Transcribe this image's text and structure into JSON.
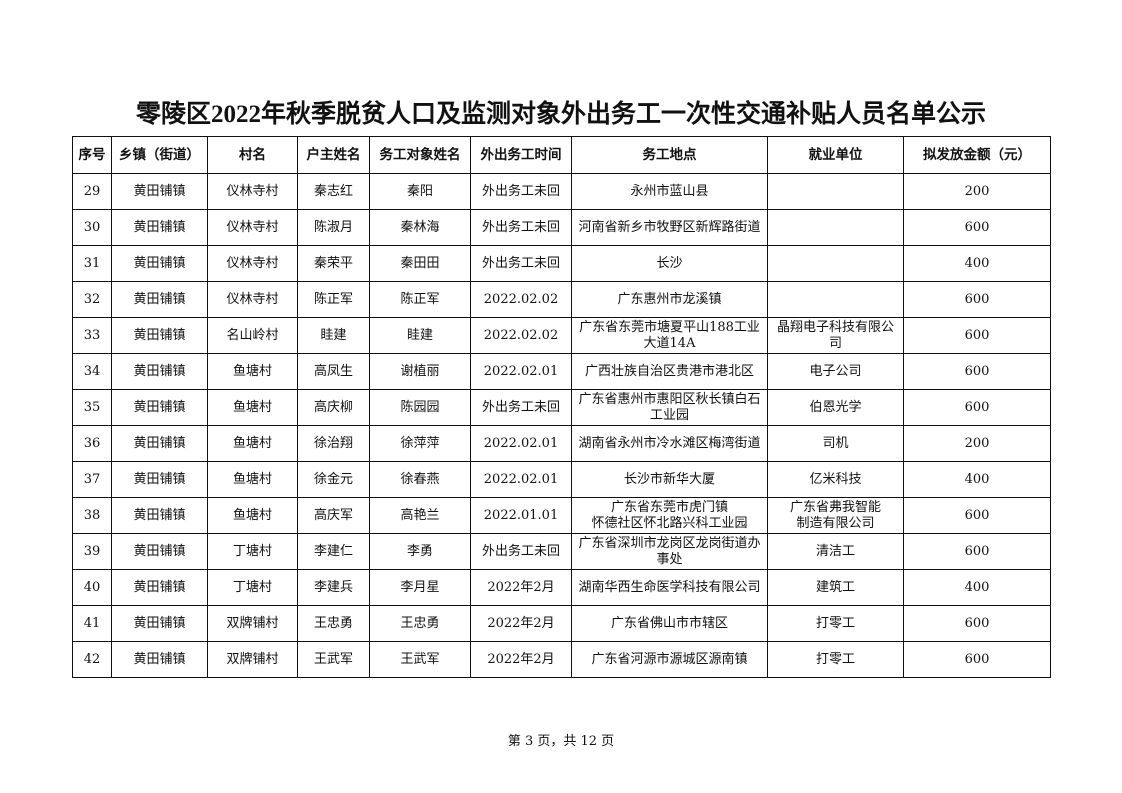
{
  "title": "零陵区2022年秋季脱贫人口及监测对象外出务工一次性交通补贴人员名单公示",
  "columns": [
    "序号",
    "乡镇（街道）",
    "村名",
    "户主姓名",
    "务工对象姓名",
    "外出务工时间",
    "务工地点",
    "就业单位",
    "拟发放金额（元）"
  ],
  "rows": [
    [
      "29",
      "黄田铺镇",
      "仪林寺村",
      "秦志红",
      "秦阳",
      "外出务工未回",
      "永州市蓝山县",
      "",
      "200"
    ],
    [
      "30",
      "黄田铺镇",
      "仪林寺村",
      "陈淑月",
      "秦林海",
      "外出务工未回",
      "河南省新乡市牧野区新辉路街道",
      "",
      "600"
    ],
    [
      "31",
      "黄田铺镇",
      "仪林寺村",
      "秦荣平",
      "秦田田",
      "外出务工未回",
      "长沙",
      "",
      "400"
    ],
    [
      "32",
      "黄田铺镇",
      "仪林寺村",
      "陈正军",
      "陈正军",
      "2022.02.02",
      "广东惠州市龙溪镇",
      "",
      "600"
    ],
    [
      "33",
      "黄田铺镇",
      "名山岭村",
      "眭建",
      "眭建",
      "2022.02.02",
      "广东省东莞市塘夏平山188工业大道14A",
      "晶翔电子科技有限公司",
      "600"
    ],
    [
      "34",
      "黄田铺镇",
      "鱼塘村",
      "高凤生",
      "谢植丽",
      "2022.02.01",
      "广西壮族自治区贵港市港北区",
      "电子公司",
      "600"
    ],
    [
      "35",
      "黄田铺镇",
      "鱼塘村",
      "高庆柳",
      "陈园园",
      "外出务工未回",
      "广东省惠州市惠阳区秋长镇白石工业园",
      "伯恩光学",
      "600"
    ],
    [
      "36",
      "黄田铺镇",
      "鱼塘村",
      "徐治翔",
      "徐萍萍",
      "2022.02.01",
      "湖南省永州市冷水滩区梅湾街道",
      "司机",
      "200"
    ],
    [
      "37",
      "黄田铺镇",
      "鱼塘村",
      "徐金元",
      "徐春燕",
      "2022.02.01",
      "长沙市新华大厦",
      "亿米科技",
      "400"
    ],
    [
      "38",
      "黄田铺镇",
      "鱼塘村",
      "高庆军",
      "高艳兰",
      "2022.01.01",
      "广东省东莞市虎门镇\n怀德社区怀北路兴科工业园",
      "广东省弗我智能\n制造有限公司",
      "600"
    ],
    [
      "39",
      "黄田铺镇",
      "丁塘村",
      "李建仁",
      "李勇",
      "外出务工未回",
      "广东省深圳市龙岗区龙岗街道办事处",
      "清洁工",
      "600"
    ],
    [
      "40",
      "黄田铺镇",
      "丁塘村",
      "李建兵",
      "李月星",
      "2022年2月",
      "湖南华西生命医学科技有限公司",
      "建筑工",
      "400"
    ],
    [
      "41",
      "黄田铺镇",
      "双牌铺村",
      "王忠勇",
      "王忠勇",
      "2022年2月",
      "广东省佛山市市辖区",
      "打零工",
      "600"
    ],
    [
      "42",
      "黄田铺镇",
      "双牌铺村",
      "王武军",
      "王武军",
      "2022年2月",
      "广东省河源市源城区源南镇",
      "打零工",
      "600"
    ]
  ],
  "footer": "第 3 页，共 12 页"
}
